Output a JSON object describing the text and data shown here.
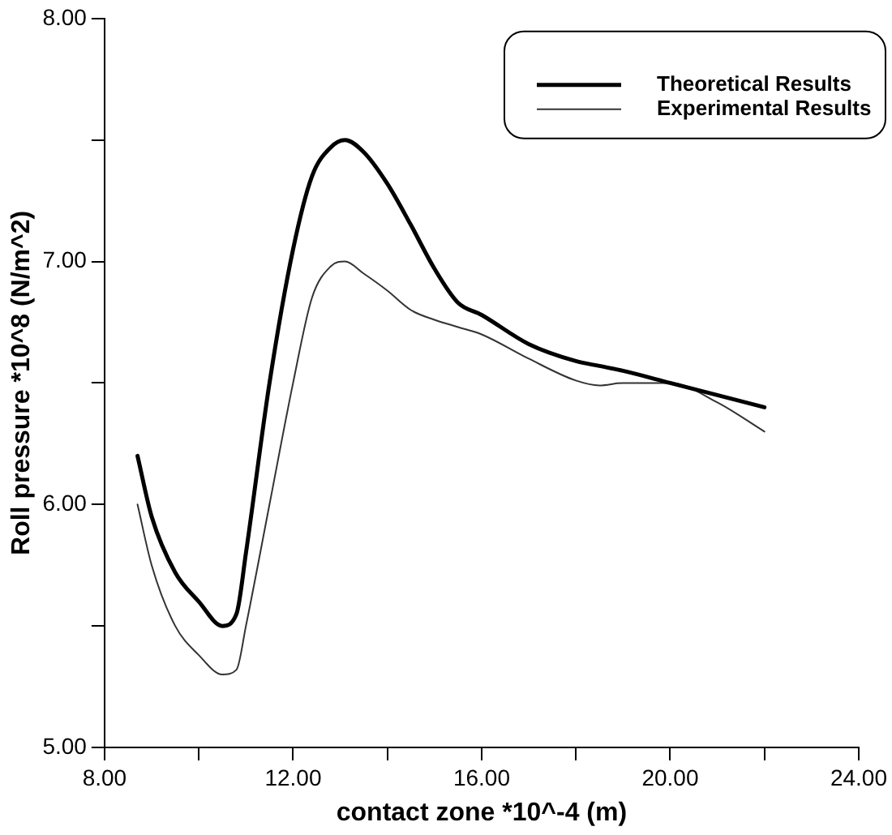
{
  "chart_data": {
    "type": "line",
    "xlabel": "contact zone *10^-4 (m)",
    "ylabel": "Roll pressure *10^8 (N/m^2)",
    "x": [
      8.7,
      9.0,
      9.5,
      10.0,
      10.5,
      10.8,
      11.0,
      11.5,
      12.0,
      12.4,
      12.8,
      13.1,
      13.5,
      14.0,
      14.5,
      15.0,
      15.5,
      16.0,
      17.0,
      18.0,
      18.5,
      19.0,
      20.0,
      21.0,
      22.0
    ],
    "series": [
      {
        "name": "Theoretical Results",
        "color": "#000000",
        "values": [
          6.2,
          5.95,
          5.72,
          5.6,
          5.5,
          5.55,
          5.8,
          6.5,
          7.05,
          7.35,
          7.47,
          7.5,
          7.45,
          7.32,
          7.15,
          6.97,
          6.83,
          6.78,
          6.66,
          6.59,
          6.57,
          6.55,
          6.5,
          6.45,
          6.4
        ]
      },
      {
        "name": "Experimental Results",
        "color": "#333333",
        "values": [
          6.0,
          5.75,
          5.5,
          5.38,
          5.3,
          5.32,
          5.5,
          6.0,
          6.5,
          6.85,
          6.98,
          7.0,
          6.95,
          6.88,
          6.8,
          6.76,
          6.73,
          6.7,
          6.6,
          6.51,
          6.49,
          6.5,
          6.5,
          6.42,
          6.3
        ]
      }
    ],
    "xlim": [
      8,
      24
    ],
    "xticks": [
      {
        "value": 8,
        "label": "8.00"
      },
      {
        "value": 10,
        "label": null
      },
      {
        "value": 12,
        "label": "12.00"
      },
      {
        "value": 14,
        "label": null
      },
      {
        "value": 16,
        "label": "16.00"
      },
      {
        "value": 18,
        "label": null
      },
      {
        "value": 20,
        "label": "20.00"
      },
      {
        "value": 22,
        "label": null
      },
      {
        "value": 24,
        "label": "24.00"
      }
    ],
    "ylim": [
      5,
      8
    ],
    "yticks": [
      {
        "value": 5,
        "label": "5.00"
      },
      {
        "value": 5.5,
        "label": null
      },
      {
        "value": 6,
        "label": "6.00"
      },
      {
        "value": 6.5,
        "label": null
      },
      {
        "value": 7,
        "label": "7.00"
      },
      {
        "value": 7.5,
        "label": null
      },
      {
        "value": 8,
        "label": "8.00"
      }
    ],
    "grid": false,
    "legend": "top right",
    "marker": "none",
    "line_style": "solid"
  }
}
